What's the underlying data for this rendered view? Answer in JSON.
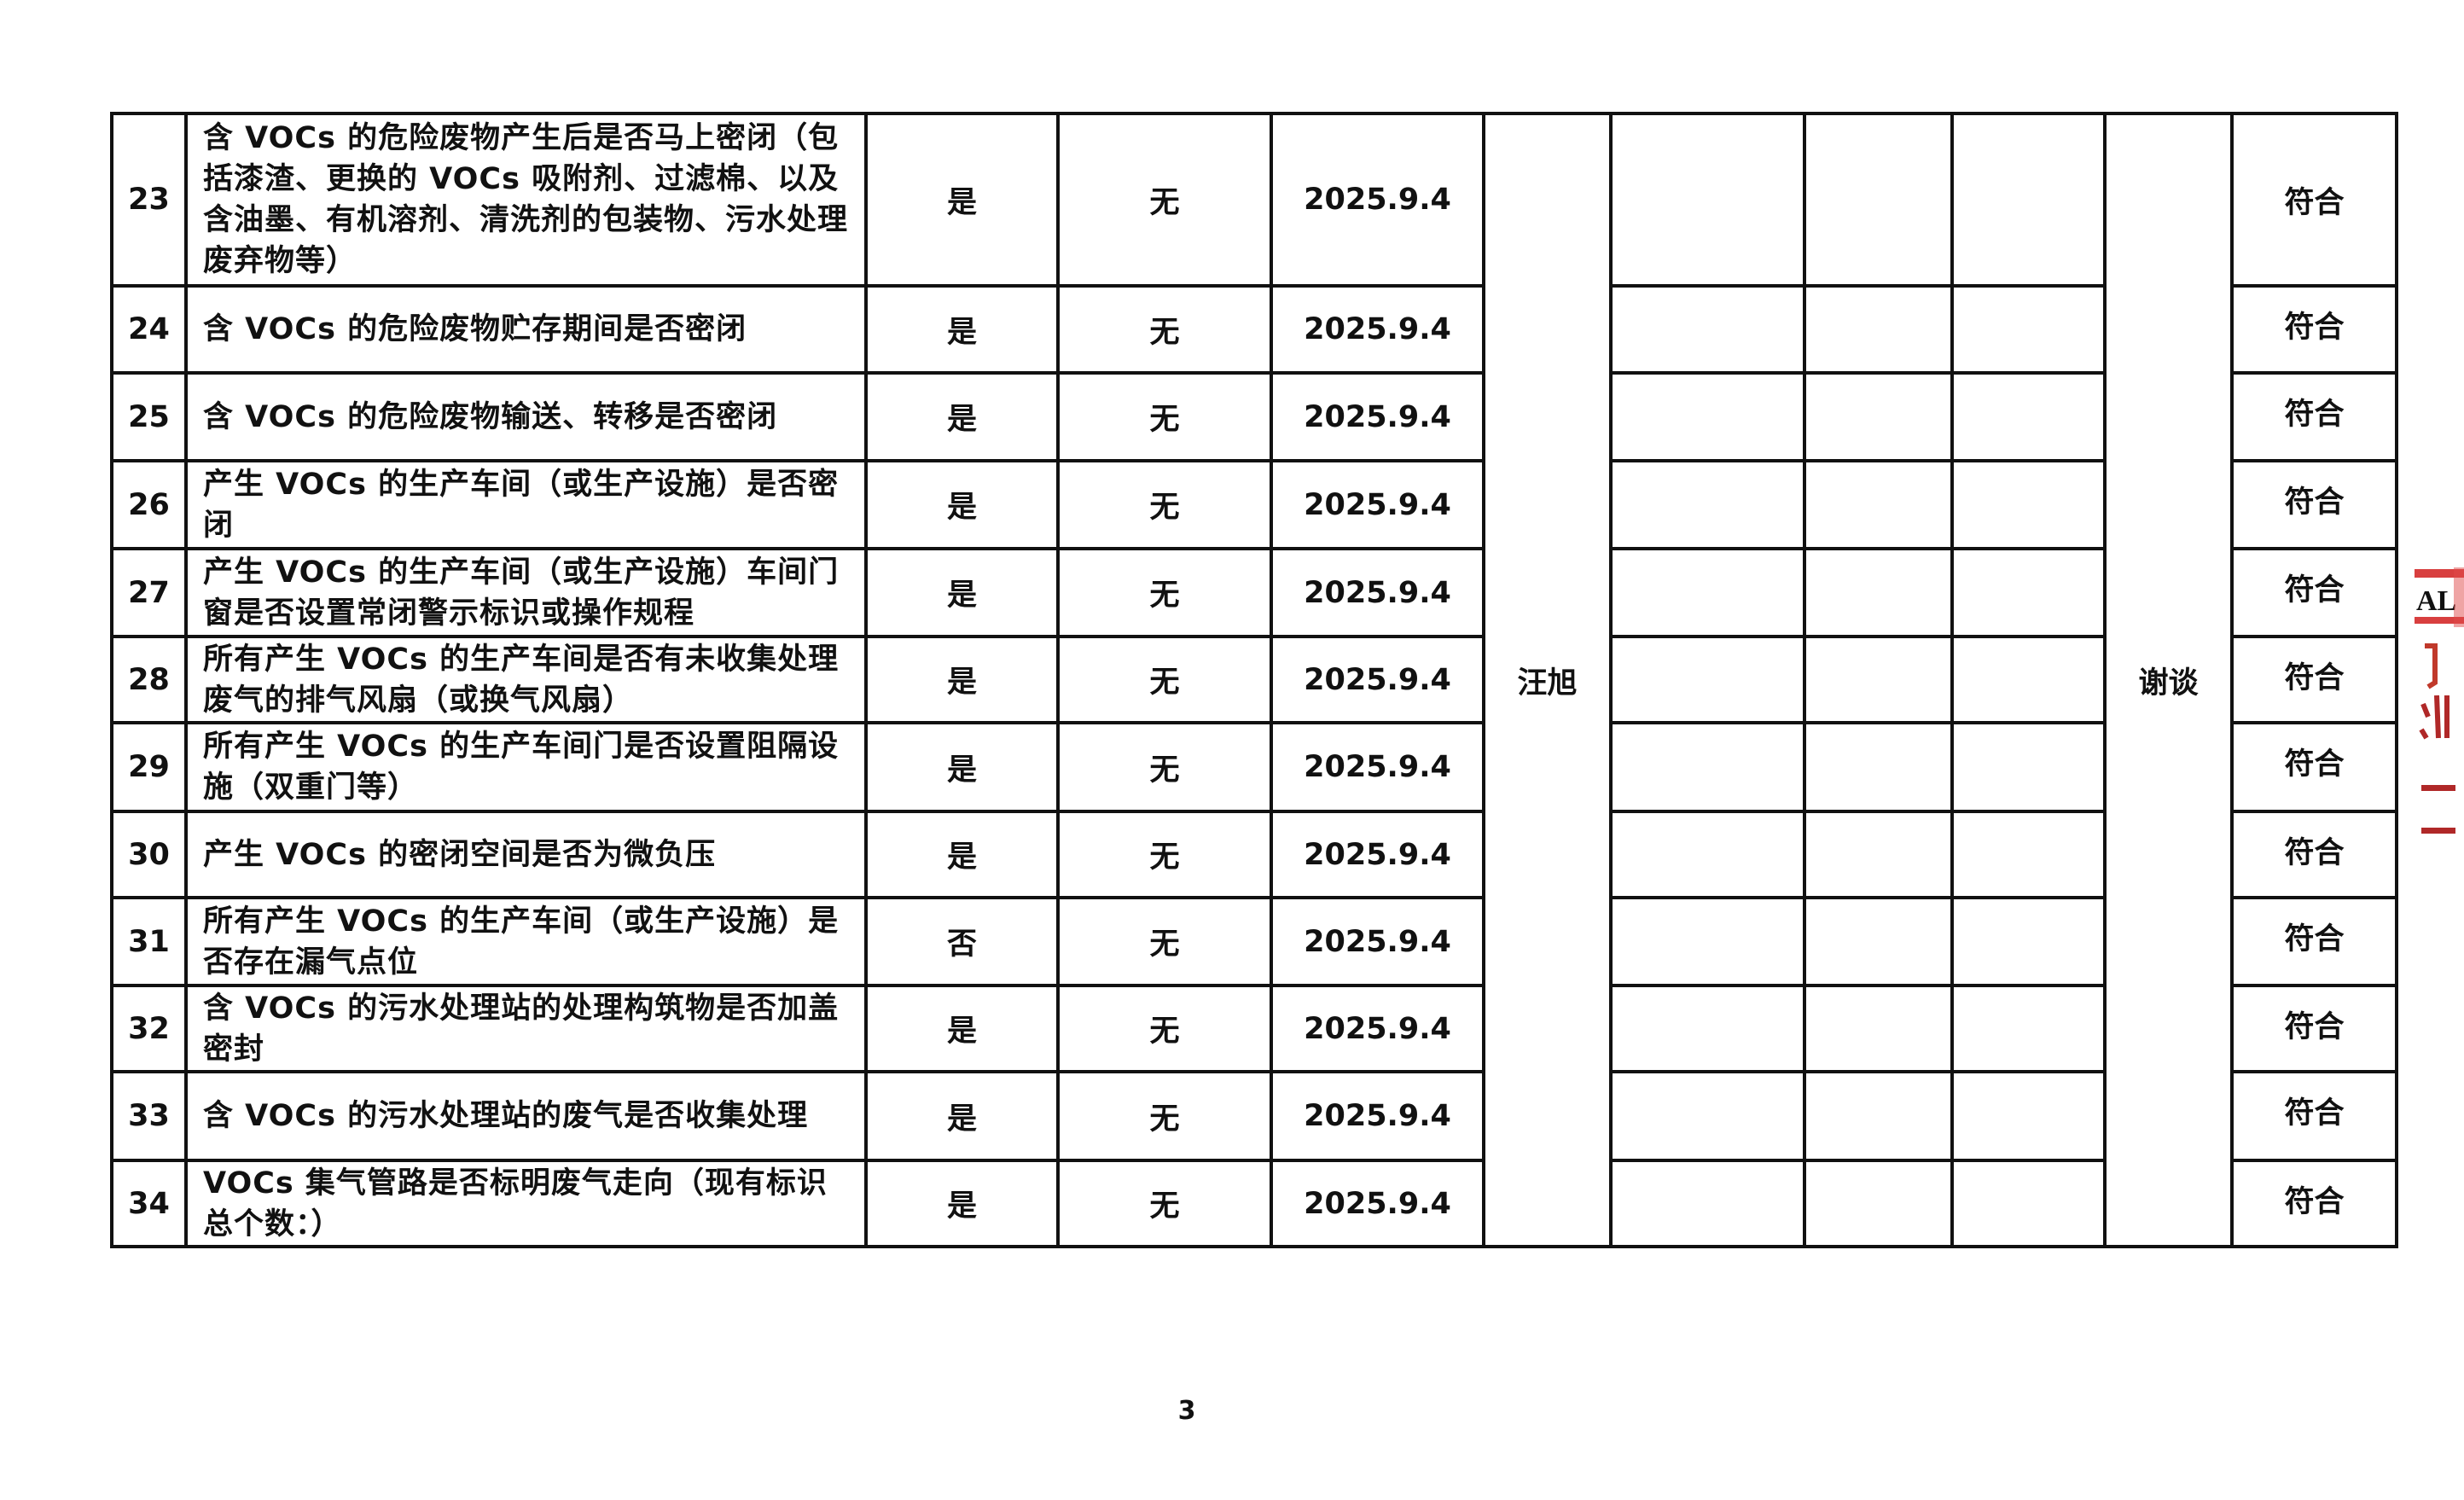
{
  "rows": [
    {
      "no": "23",
      "item": "含 VOCs 的危险废物产生后是否马上密闭（包括漆渣、更换的 VOCs 吸附剂、过滤棉、以及含油墨、有机溶剂、清洗剂的包装物、污水处理废弃物等）",
      "answer": "是",
      "issue": "无",
      "date": "2025.9.4",
      "result": "符合"
    },
    {
      "no": "24",
      "item": "含 VOCs 的危险废物贮存期间是否密闭",
      "answer": "是",
      "issue": "无",
      "date": "2025.9.4",
      "result": "符合"
    },
    {
      "no": "25",
      "item": "含 VOCs 的危险废物输送、转移是否密闭",
      "answer": "是",
      "issue": "无",
      "date": "2025.9.4",
      "result": "符合"
    },
    {
      "no": "26",
      "item": "产生 VOCs 的生产车间（或生产设施）是否密闭",
      "answer": "是",
      "issue": "无",
      "date": "2025.9.4",
      "result": "符合"
    },
    {
      "no": "27",
      "item": "产生 VOCs 的生产车间（或生产设施）车间门窗是否设置常闭警示标识或操作规程",
      "answer": "是",
      "issue": "无",
      "date": "2025.9.4",
      "result": "符合"
    },
    {
      "no": "28",
      "item": "所有产生 VOCs 的生产车间是否有未收集处理废气的排气风扇（或换气风扇）",
      "answer": "是",
      "issue": "无",
      "date": "2025.9.4",
      "result": "符合"
    },
    {
      "no": "29",
      "item": "所有产生 VOCs 的生产车间门是否设置阻隔设施（双重门等）",
      "answer": "是",
      "issue": "无",
      "date": "2025.9.4",
      "result": "符合"
    },
    {
      "no": "30",
      "item": "产生 VOCs 的密闭空间是否为微负压",
      "answer": "是",
      "issue": "无",
      "date": "2025.9.4",
      "result": "符合"
    },
    {
      "no": "31",
      "item": "所有产生 VOCs 的生产车间（或生产设施）是否存在漏气点位",
      "answer": "否",
      "issue": "无",
      "date": "2025.9.4",
      "result": "符合"
    },
    {
      "no": "32",
      "item": "含 VOCs 的污水处理站的处理构筑物是否加盖密封",
      "answer": "是",
      "issue": "无",
      "date": "2025.9.4",
      "result": "符合"
    },
    {
      "no": "33",
      "item": "含 VOCs 的污水处理站的废气是否收集处理",
      "answer": "是",
      "issue": "无",
      "date": "2025.9.4",
      "result": "符合"
    },
    {
      "no": "34",
      "item": "VOCs 集气管路是否标明废气走向（现有标识总个数：）",
      "answer": "是",
      "issue": "无",
      "date": "2025.9.4",
      "result": "符合"
    }
  ],
  "inspector": "汪旭",
  "method": "谢谈",
  "page_number": "3",
  "seal_text": "AL 门 沂 二 二",
  "colors": {
    "seal": "#d42a2a",
    "line": "#111111"
  }
}
